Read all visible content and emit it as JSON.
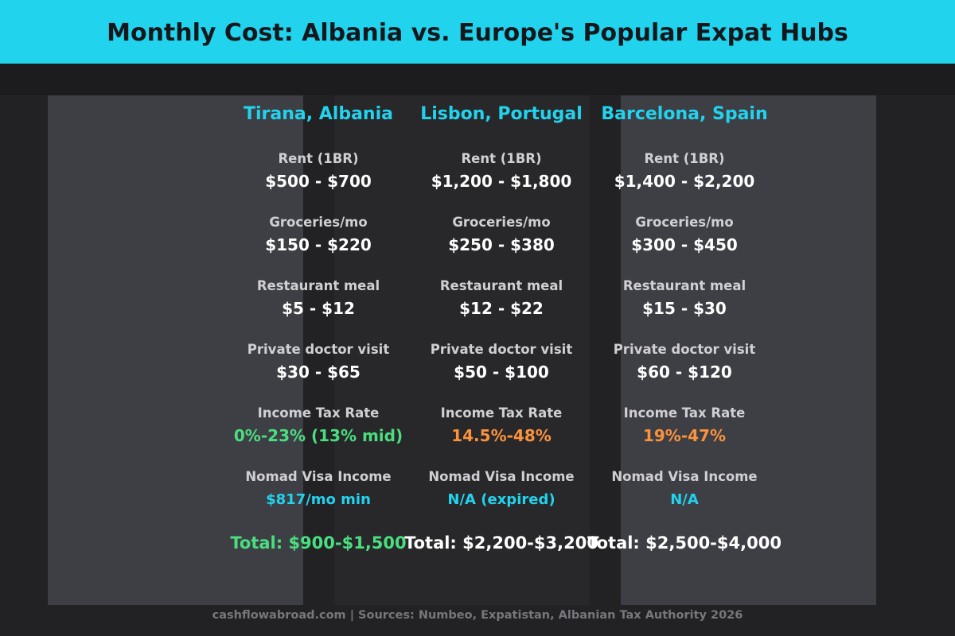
{
  "header": {
    "title": "Monthly Cost: Albania vs. Europe's Popular Expat Hubs"
  },
  "columns": [
    {
      "name": "Tirana, Albania",
      "rows": [
        {
          "label": "Rent (1BR)",
          "value": "$500 - $700"
        },
        {
          "label": "Groceries/mo",
          "value": "$150 - $220"
        },
        {
          "label": "Restaurant meal",
          "value": "$5 - $12"
        },
        {
          "label": "Private doctor visit",
          "value": "$30 - $65"
        },
        {
          "label": "Income Tax Rate",
          "value": "0%-23% (13% mid)"
        },
        {
          "label": "Nomad Visa Income",
          "value": "$817/mo min"
        }
      ],
      "total": "Total: $900-$1,500"
    },
    {
      "name": "Lisbon, Portugal",
      "rows": [
        {
          "label": "Rent (1BR)",
          "value": "$1,200 - $1,800"
        },
        {
          "label": "Groceries/mo",
          "value": "$250 - $380"
        },
        {
          "label": "Restaurant meal",
          "value": "$12 - $22"
        },
        {
          "label": "Private doctor visit",
          "value": "$50 - $100"
        },
        {
          "label": "Income Tax Rate",
          "value": "14.5%-48%"
        },
        {
          "label": "Nomad Visa Income",
          "value": "N/A (expired)"
        }
      ],
      "total": "Total: $2,200-$3,200"
    },
    {
      "name": "Barcelona, Spain",
      "rows": [
        {
          "label": "Rent (1BR)",
          "value": "$1,400 - $2,200"
        },
        {
          "label": "Groceries/mo",
          "value": "$300 - $450"
        },
        {
          "label": "Restaurant meal",
          "value": "$15 - $30"
        },
        {
          "label": "Private doctor visit",
          "value": "$60 - $120"
        },
        {
          "label": "Income Tax Rate",
          "value": "19%-47%"
        },
        {
          "label": "Nomad Visa Income",
          "value": "N/A"
        }
      ],
      "total": "Total: $2,500-$4,000"
    }
  ],
  "footer": "cashflowabroad.com | Sources: Numbeo, Expatistan, Albanian Tax Authority 2026"
}
